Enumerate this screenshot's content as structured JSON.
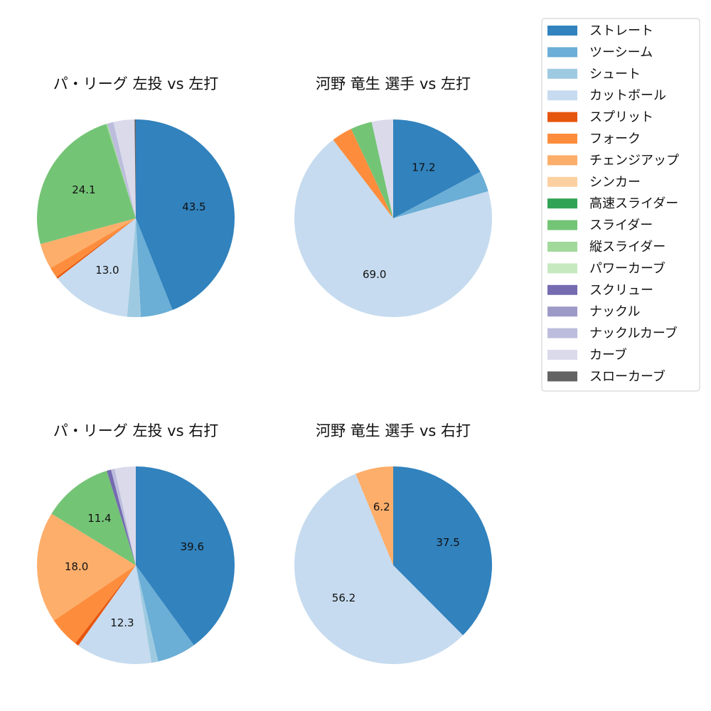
{
  "legend": {
    "entries": [
      {
        "name": "ストレート",
        "color": "#3182bd"
      },
      {
        "name": "ツーシーム",
        "color": "#6baed6"
      },
      {
        "name": "シュート",
        "color": "#9ecae1"
      },
      {
        "name": "カットボール",
        "color": "#c6dbef"
      },
      {
        "name": "スプリット",
        "color": "#e6550d"
      },
      {
        "name": "フォーク",
        "color": "#fd8d3c"
      },
      {
        "name": "チェンジアップ",
        "color": "#fdae6b"
      },
      {
        "name": "シンカー",
        "color": "#fdd0a2"
      },
      {
        "name": "高速スライダー",
        "color": "#31a354"
      },
      {
        "name": "スライダー",
        "color": "#74c476"
      },
      {
        "name": "縦スライダー",
        "color": "#a1d99b"
      },
      {
        "name": "パワーカーブ",
        "color": "#c7e9c0"
      },
      {
        "name": "スクリュー",
        "color": "#756bb1"
      },
      {
        "name": "ナックル",
        "color": "#9e9ac8"
      },
      {
        "name": "ナックルカーブ",
        "color": "#bcbddc"
      },
      {
        "name": "カーブ",
        "color": "#dadaeb"
      },
      {
        "name": "スローカーブ",
        "color": "#636363"
      }
    ]
  },
  "chart_data": [
    {
      "type": "pie",
      "title": "パ・リーグ 左投 vs 左打",
      "start_angle": 90,
      "direction": "clockwise",
      "slices": [
        {
          "name": "ストレート",
          "value": 43.5,
          "label": "43.5"
        },
        {
          "name": "ツーシーム",
          "value": 5.2
        },
        {
          "name": "シュート",
          "value": 2.2
        },
        {
          "name": "カットボール",
          "value": 13.0,
          "label": "13.0"
        },
        {
          "name": "スプリット",
          "value": 0.3
        },
        {
          "name": "フォーク",
          "value": 1.7
        },
        {
          "name": "チェンジアップ",
          "value": 4.2
        },
        {
          "name": "スライダー",
          "value": 24.1,
          "label": "24.1"
        },
        {
          "name": "縦スライダー",
          "value": 0.2
        },
        {
          "name": "ナックルカーブ",
          "value": 1.0
        },
        {
          "name": "カーブ",
          "value": 3.4
        },
        {
          "name": "スローカーブ",
          "value": 0.2
        }
      ]
    },
    {
      "type": "pie",
      "title": "河野 竜生 選手 vs 左打",
      "start_angle": 90,
      "direction": "clockwise",
      "slices": [
        {
          "name": "ストレート",
          "value": 17.2,
          "label": "17.2"
        },
        {
          "name": "ツーシーム",
          "value": 3.4
        },
        {
          "name": "カットボール",
          "value": 69.0,
          "label": "69.0"
        },
        {
          "name": "フォーク",
          "value": 3.4
        },
        {
          "name": "スライダー",
          "value": 3.5
        },
        {
          "name": "カーブ",
          "value": 3.5
        }
      ]
    },
    {
      "type": "pie",
      "title": "パ・リーグ 左投 vs 右打",
      "start_angle": 90,
      "direction": "clockwise",
      "slices": [
        {
          "name": "ストレート",
          "value": 39.6,
          "label": "39.6"
        },
        {
          "name": "ツーシーム",
          "value": 6.3
        },
        {
          "name": "シュート",
          "value": 1.1
        },
        {
          "name": "カットボール",
          "value": 12.3,
          "label": "12.3"
        },
        {
          "name": "スプリット",
          "value": 0.6
        },
        {
          "name": "フォーク",
          "value": 5.0
        },
        {
          "name": "チェンジアップ",
          "value": 18.0,
          "label": "18.0"
        },
        {
          "name": "スライダー",
          "value": 11.4,
          "label": "11.4"
        },
        {
          "name": "スクリュー",
          "value": 0.7
        },
        {
          "name": "ナックルカーブ",
          "value": 0.6
        },
        {
          "name": "カーブ",
          "value": 3.4
        }
      ]
    },
    {
      "type": "pie",
      "title": "河野 竜生 選手 vs 右打",
      "start_angle": 90,
      "direction": "clockwise",
      "slices": [
        {
          "name": "ストレート",
          "value": 37.5,
          "label": "37.5"
        },
        {
          "name": "カットボール",
          "value": 56.2,
          "label": "56.2"
        },
        {
          "name": "チェンジアップ",
          "value": 6.2,
          "label": "6.2"
        }
      ]
    }
  ]
}
